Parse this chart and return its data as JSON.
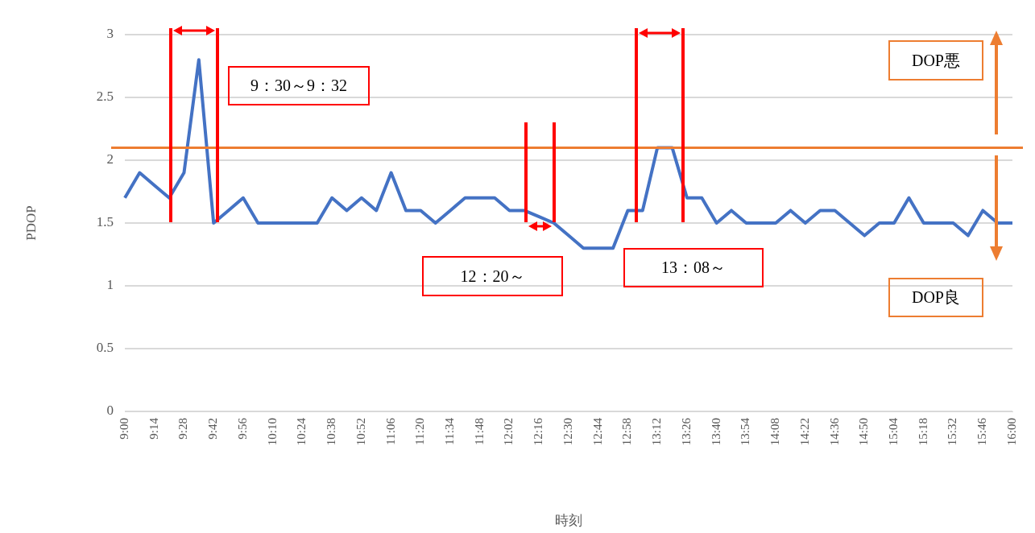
{
  "chart_data": {
    "type": "line",
    "xlabel": "時刻",
    "ylabel": "PDOP",
    "categories": [
      "9:00",
      null,
      "9:14",
      null,
      "9:28",
      null,
      "9:42",
      null,
      "9:56",
      null,
      "10:10",
      null,
      "10:24",
      null,
      "10:38",
      null,
      "10:52",
      null,
      "11:06",
      null,
      "11:20",
      null,
      "11:34",
      null,
      "11:48",
      null,
      "12:02",
      null,
      "12:16",
      null,
      "12:30",
      null,
      "12:44",
      null,
      "12:58",
      null,
      "13:12",
      null,
      "13:26",
      null,
      "13:40",
      null,
      "13:54",
      null,
      "14:08",
      null,
      "14:22",
      null,
      "14:36",
      null,
      "14:50",
      null,
      "15:04",
      null,
      "15:18",
      null,
      "15:32",
      null,
      "15:46",
      null,
      "16:00"
    ],
    "series": [
      {
        "color": "#4472c4",
        "values": [
          1.7,
          1.9,
          1.8,
          1.7,
          1.9,
          2.8,
          1.5,
          1.6,
          1.7,
          1.5,
          1.5,
          1.5,
          1.5,
          1.5,
          1.7,
          1.6,
          1.7,
          1.6,
          1.9,
          1.6,
          1.6,
          1.5,
          1.6,
          1.7,
          1.7,
          1.7,
          1.6,
          1.6,
          1.55,
          1.5,
          1.4,
          1.3,
          1.3,
          1.3,
          1.6,
          1.6,
          2.1,
          2.1,
          1.7,
          1.7,
          1.5,
          1.6,
          1.5,
          1.5,
          1.5,
          1.6,
          1.5,
          1.6,
          1.6,
          1.5,
          1.4,
          1.5,
          1.5,
          1.7,
          1.5,
          1.5,
          1.5,
          1.4,
          1.6,
          1.5,
          1.5
        ]
      }
    ],
    "ylim": [
      0,
      3
    ],
    "yticks": [
      0,
      0.5,
      1,
      1.5,
      2,
      2.5,
      3
    ],
    "grid": "y",
    "legend": false,
    "marker": "none",
    "line_style": "solid",
    "ref_lines": [
      {
        "axis": "y",
        "value": 2.1,
        "color": "#ed7d31"
      }
    ],
    "annotations": [
      "9：30～9：32",
      "12：20～",
      "13：08～",
      "DOP悪",
      "DOP良"
    ]
  }
}
